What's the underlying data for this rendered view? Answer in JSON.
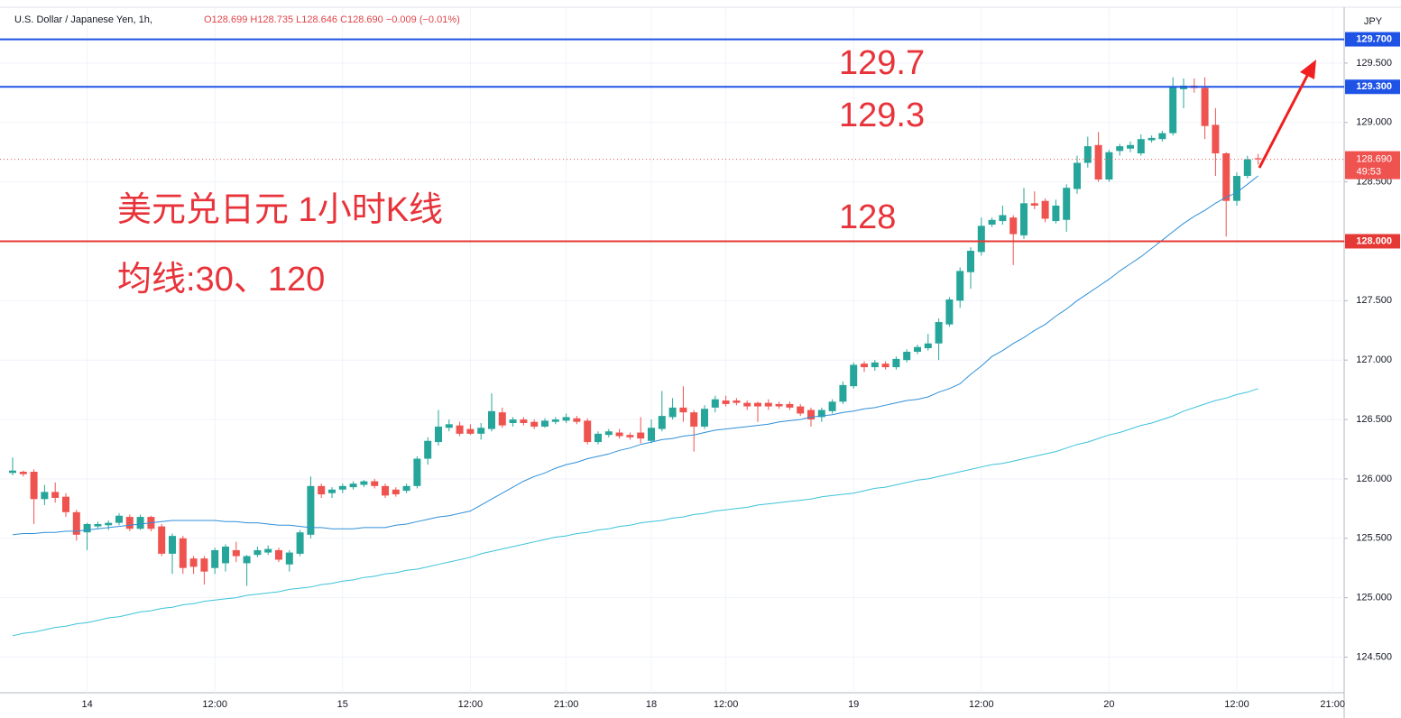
{
  "header": {
    "symbol": "U.S. Dollar / Japanese Yen, 1h,",
    "ohlc": "O128.699 H128.735 L128.646 C128.690 −0.009 (−0.01%)",
    "currency": "JPY"
  },
  "chart_data": {
    "type": "candlestick",
    "categories": [
      null,
      null,
      null,
      null,
      null,
      null,
      null,
      "14",
      null,
      null,
      null,
      null,
      null,
      null,
      null,
      null,
      null,
      null,
      null,
      "12:00",
      null,
      null,
      null,
      null,
      null,
      null,
      null,
      null,
      null,
      null,
      null,
      "15",
      null,
      null,
      null,
      null,
      null,
      null,
      null,
      null,
      null,
      null,
      null,
      "12:00",
      null,
      null,
      null,
      null,
      null,
      null,
      null,
      null,
      "21:00",
      null,
      null,
      null,
      null,
      null,
      null,
      null,
      "18",
      null,
      null,
      null,
      null,
      null,
      null,
      "12:00",
      null,
      null,
      null,
      null,
      null,
      null,
      null,
      null,
      null,
      null,
      null,
      "19",
      null,
      null,
      null,
      null,
      null,
      null,
      null,
      null,
      null,
      null,
      null,
      "12:00",
      null,
      null,
      null,
      null,
      null,
      null,
      null,
      null,
      null,
      null,
      null,
      "20",
      null,
      null,
      null,
      null,
      null,
      null,
      null,
      null,
      null,
      null,
      null,
      "12:00",
      null,
      null,
      null,
      null,
      null,
      null,
      null,
      null,
      "21:00"
    ],
    "open": [
      126.05,
      126.06,
      126.06,
      125.83,
      125.89,
      125.85,
      125.72,
      125.55,
      125.6,
      125.61,
      125.63,
      125.68,
      125.58,
      125.68,
      125.6,
      125.37,
      125.5,
      125.33,
      125.33,
      125.25,
      125.29,
      125.4,
      125.29,
      125.36,
      125.38,
      125.4,
      125.28,
      125.37,
      125.53,
      125.94,
      125.88,
      125.91,
      125.93,
      125.95,
      125.98,
      125.94,
      125.91,
      125.9,
      125.94,
      126.17,
      126.31,
      126.43,
      126.45,
      126.42,
      126.38,
      126.42,
      126.56,
      126.47,
      126.5,
      126.48,
      126.44,
      126.48,
      126.49,
      126.51,
      126.49,
      126.31,
      126.37,
      126.39,
      126.37,
      126.39,
      126.32,
      126.42,
      126.52,
      126.6,
      126.56,
      126.44,
      126.6,
      126.66,
      126.66,
      126.64,
      126.64,
      126.64,
      126.63,
      126.63,
      126.61,
      126.58,
      126.52,
      126.57,
      126.65,
      126.78,
      126.97,
      126.94,
      126.97,
      126.94,
      127.0,
      127.07,
      127.1,
      127.14,
      127.3,
      127.5,
      127.74,
      127.91,
      128.14,
      128.17,
      128.2,
      128.05,
      128.32,
      128.34,
      128.17,
      128.18,
      128.44,
      128.66,
      128.81,
      128.52,
      128.76,
      128.78,
      128.74,
      128.85,
      128.86,
      128.91,
      129.28,
      129.31,
      129.29,
      128.98,
      128.74,
      128.34,
      128.55,
      128.699,
      null,
      null,
      null,
      null,
      null,
      null,
      null
    ],
    "high": [
      126.18,
      126.07,
      126.08,
      125.95,
      125.97,
      125.88,
      125.74,
      125.63,
      125.64,
      125.65,
      125.71,
      125.7,
      125.7,
      125.69,
      125.62,
      125.54,
      125.52,
      125.35,
      125.35,
      125.42,
      125.45,
      125.47,
      125.36,
      125.43,
      125.44,
      125.42,
      125.4,
      125.57,
      126.02,
      125.96,
      125.93,
      125.96,
      125.98,
      125.99,
      126.0,
      125.96,
      125.93,
      125.96,
      126.19,
      126.35,
      126.58,
      126.5,
      126.48,
      126.46,
      126.47,
      126.72,
      126.6,
      126.52,
      126.52,
      126.5,
      126.51,
      126.52,
      126.55,
      126.53,
      126.51,
      126.4,
      126.42,
      126.42,
      126.39,
      126.52,
      126.5,
      126.74,
      126.68,
      126.78,
      126.58,
      126.62,
      126.7,
      126.7,
      126.68,
      126.66,
      126.65,
      126.67,
      126.65,
      126.65,
      126.63,
      126.6,
      126.6,
      126.67,
      126.82,
      126.98,
      126.99,
      127.0,
      126.99,
      127.03,
      127.09,
      127.13,
      127.22,
      127.35,
      127.53,
      127.78,
      127.95,
      128.2,
      128.2,
      128.3,
      128.22,
      128.45,
      128.42,
      128.36,
      128.35,
      128.48,
      128.72,
      128.88,
      128.92,
      128.77,
      128.82,
      128.84,
      128.9,
      128.89,
      128.93,
      129.38,
      129.37,
      129.37,
      129.38,
      129.12,
      128.75,
      128.58,
      128.72,
      128.735,
      null,
      null,
      null,
      null,
      null,
      null,
      null
    ],
    "low": [
      126.03,
      126.02,
      125.62,
      125.78,
      125.8,
      125.68,
      125.48,
      125.4,
      125.58,
      125.57,
      125.61,
      125.56,
      125.57,
      125.56,
      125.35,
      125.2,
      125.2,
      125.2,
      125.11,
      125.2,
      125.22,
      125.3,
      125.1,
      125.34,
      125.36,
      125.3,
      125.22,
      125.35,
      125.5,
      125.84,
      125.84,
      125.88,
      125.91,
      125.93,
      125.92,
      125.84,
      125.85,
      125.88,
      125.92,
      126.12,
      126.28,
      126.4,
      126.36,
      126.37,
      126.33,
      126.4,
      126.43,
      126.44,
      126.45,
      126.42,
      126.43,
      126.46,
      126.47,
      126.46,
      126.29,
      126.29,
      126.35,
      126.34,
      126.33,
      126.3,
      126.3,
      126.4,
      126.5,
      126.48,
      126.23,
      126.42,
      126.56,
      126.61,
      126.62,
      126.58,
      126.48,
      126.58,
      126.59,
      126.58,
      126.53,
      126.44,
      126.48,
      126.55,
      126.63,
      126.76,
      126.9,
      126.91,
      126.92,
      126.92,
      126.98,
      127.05,
      127.08,
      127.0,
      127.28,
      127.44,
      127.6,
      127.88,
      128.12,
      128.14,
      127.8,
      128.02,
      128.27,
      128.16,
      128.15,
      128.08,
      128.4,
      128.62,
      128.5,
      128.5,
      128.72,
      128.75,
      128.72,
      128.83,
      128.84,
      128.89,
      129.12,
      129.25,
      128.86,
      128.55,
      128.04,
      128.3,
      128.53,
      128.646,
      null,
      null,
      null,
      null,
      null,
      null,
      null
    ],
    "close": [
      126.07,
      126.04,
      125.83,
      125.89,
      125.84,
      125.72,
      125.53,
      125.62,
      125.62,
      125.63,
      125.69,
      125.58,
      125.68,
      125.58,
      125.37,
      125.52,
      125.25,
      125.26,
      125.22,
      125.4,
      125.43,
      125.35,
      125.35,
      125.4,
      125.41,
      125.32,
      125.38,
      125.55,
      125.94,
      125.87,
      125.91,
      125.94,
      125.96,
      125.98,
      125.94,
      125.86,
      125.87,
      125.94,
      126.17,
      126.32,
      126.44,
      126.46,
      126.38,
      126.38,
      126.43,
      126.57,
      126.45,
      126.5,
      126.47,
      126.44,
      126.49,
      126.5,
      126.52,
      126.48,
      126.31,
      126.38,
      126.4,
      126.36,
      126.35,
      126.34,
      126.43,
      126.53,
      126.6,
      126.56,
      126.44,
      126.59,
      126.67,
      126.63,
      126.64,
      126.61,
      126.61,
      126.61,
      126.61,
      126.6,
      126.55,
      126.5,
      126.58,
      126.65,
      126.79,
      126.96,
      126.94,
      126.98,
      126.94,
      127.01,
      127.07,
      127.11,
      127.14,
      127.32,
      127.51,
      127.75,
      127.92,
      128.13,
      128.18,
      128.22,
      128.06,
      128.32,
      128.3,
      128.19,
      128.3,
      128.45,
      128.66,
      128.8,
      128.52,
      128.75,
      128.8,
      128.81,
      128.86,
      128.87,
      128.91,
      129.3,
      129.31,
      129.29,
      128.97,
      128.74,
      128.34,
      128.55,
      128.69,
      128.69,
      null,
      null,
      null,
      null,
      null,
      null,
      null
    ],
    "up_color": "#26a69a",
    "down_color": "#ef5350",
    "lines": [
      {
        "color": "#2f8fd8",
        "values": [
          125.53,
          125.54,
          125.54,
          125.55,
          125.55,
          125.56,
          125.56,
          125.57,
          125.58,
          125.59,
          125.6,
          125.61,
          125.62,
          125.63,
          125.64,
          125.65,
          125.65,
          125.65,
          125.65,
          125.65,
          125.64,
          125.64,
          125.63,
          125.63,
          125.62,
          125.61,
          125.61,
          125.6,
          125.59,
          125.59,
          125.58,
          125.58,
          125.58,
          125.59,
          125.59,
          125.59,
          125.61,
          125.62,
          125.64,
          125.66,
          125.68,
          125.69,
          125.71,
          125.73,
          125.78,
          125.83,
          125.88,
          125.93,
          125.98,
          126.02,
          126.05,
          126.09,
          126.12,
          126.14,
          126.17,
          126.19,
          126.21,
          126.24,
          126.26,
          126.29,
          126.31,
          126.33,
          126.34,
          126.36,
          126.37,
          126.39,
          126.41,
          126.42,
          126.43,
          126.44,
          126.45,
          126.46,
          126.48,
          126.49,
          126.5,
          126.52,
          126.53,
          126.54,
          126.56,
          126.57,
          126.59,
          126.6,
          126.62,
          126.64,
          126.66,
          126.67,
          126.69,
          126.73,
          126.76,
          126.8,
          126.88,
          126.95,
          127.03,
          127.08,
          127.14,
          127.19,
          127.25,
          127.3,
          127.37,
          127.43,
          127.5,
          127.56,
          127.62,
          127.68,
          127.75,
          127.81,
          127.87,
          127.94,
          128.01,
          128.08,
          128.15,
          128.21,
          128.26,
          128.32,
          128.37,
          128.41,
          128.48,
          128.55,
          null,
          null,
          null,
          null,
          null,
          null,
          null
        ]
      },
      {
        "color": "#3cc3d9",
        "values": [
          124.68,
          124.7,
          124.71,
          124.73,
          124.75,
          124.76,
          124.78,
          124.79,
          124.81,
          124.83,
          124.84,
          124.86,
          124.88,
          124.89,
          124.91,
          124.92,
          124.94,
          124.95,
          124.97,
          124.98,
          124.99,
          125.0,
          125.02,
          125.03,
          125.04,
          125.05,
          125.07,
          125.08,
          125.09,
          125.11,
          125.12,
          125.14,
          125.15,
          125.17,
          125.18,
          125.2,
          125.21,
          125.23,
          125.24,
          125.26,
          125.28,
          125.3,
          125.32,
          125.34,
          125.37,
          125.39,
          125.41,
          125.43,
          125.45,
          125.47,
          125.49,
          125.51,
          125.52,
          125.54,
          125.55,
          125.57,
          125.58,
          125.6,
          125.61,
          125.63,
          125.64,
          125.65,
          125.67,
          125.68,
          125.7,
          125.71,
          125.73,
          125.74,
          125.75,
          125.76,
          125.78,
          125.79,
          125.8,
          125.81,
          125.82,
          125.83,
          125.85,
          125.86,
          125.87,
          125.88,
          125.9,
          125.92,
          125.93,
          125.95,
          125.97,
          125.99,
          126.0,
          126.02,
          126.04,
          126.06,
          126.08,
          126.1,
          126.12,
          126.13,
          126.15,
          126.17,
          126.19,
          126.21,
          126.23,
          126.26,
          126.29,
          126.31,
          126.34,
          126.37,
          126.39,
          126.42,
          126.45,
          126.47,
          126.5,
          126.53,
          126.57,
          126.6,
          126.63,
          126.66,
          126.68,
          126.71,
          126.73,
          126.76,
          null,
          null,
          null,
          null,
          null,
          null,
          null
        ]
      }
    ],
    "ylim": [
      124.2,
      129.97
    ],
    "yticks": [
      {
        "value": 124.5,
        "label": "124.500"
      },
      {
        "value": 125,
        "label": "125.000"
      },
      {
        "value": 125.5,
        "label": "125.500"
      },
      {
        "value": 126,
        "label": "126.000"
      },
      {
        "value": 126.5,
        "label": "126.500"
      },
      {
        "value": 127,
        "label": "127.000"
      },
      {
        "value": 127.5,
        "label": "127.500"
      },
      {
        "value": 128,
        "label": "128.000"
      },
      {
        "value": 128.5,
        "label": "128.500"
      },
      {
        "value": 129,
        "label": "129.000"
      },
      {
        "value": 129.5,
        "label": "129.500"
      }
    ],
    "grid": true,
    "hlines": [
      {
        "value": 129.7,
        "label": "129.700",
        "color": "#1e53e5"
      },
      {
        "value": 129.3,
        "label": "129.300",
        "color": "#1e53e5"
      },
      {
        "value": 128,
        "label": "128.000",
        "color": "#e53935"
      }
    ],
    "last_price": {
      "value": 128.69,
      "label": "128.690",
      "countdown": "49:53",
      "color": "#ef5350"
    },
    "annotations": [
      "129.7",
      "129.3",
      "128",
      "美元兑日元 1小时K线",
      "均线:30、120"
    ]
  }
}
